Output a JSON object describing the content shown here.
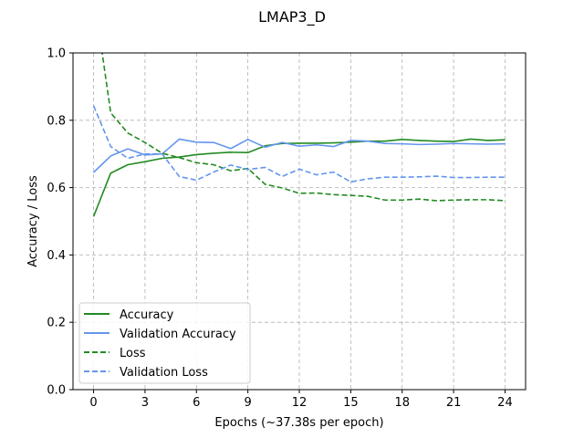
{
  "chart_data": {
    "type": "line",
    "title": "LMAP3_D",
    "xlabel": "Epochs (~37.38s per epoch)",
    "ylabel": "Accuracy / Loss",
    "xlim": [
      -1.2,
      25.2
    ],
    "ylim": [
      0.0,
      1.0
    ],
    "xticks": [
      0,
      3,
      6,
      9,
      12,
      15,
      18,
      21,
      24
    ],
    "yticks": [
      0.0,
      0.2,
      0.4,
      0.6,
      0.8,
      1.0
    ],
    "grid": true,
    "legend_position": "lower-left",
    "x": [
      0,
      1,
      2,
      3,
      4,
      5,
      6,
      7,
      8,
      9,
      10,
      11,
      12,
      13,
      14,
      15,
      16,
      17,
      18,
      19,
      20,
      21,
      22,
      23,
      24
    ],
    "series": [
      {
        "name": "Accuracy",
        "color": "#228b22",
        "style": "solid",
        "values": [
          0.514,
          0.643,
          0.668,
          0.677,
          0.687,
          0.691,
          0.698,
          0.702,
          0.705,
          0.704,
          0.724,
          0.731,
          0.732,
          0.732,
          0.733,
          0.735,
          0.738,
          0.738,
          0.743,
          0.74,
          0.738,
          0.737,
          0.744,
          0.74,
          0.742
        ]
      },
      {
        "name": "Validation Accuracy",
        "color": "#6495ed",
        "style": "solid",
        "values": [
          0.645,
          0.694,
          0.715,
          0.697,
          0.7,
          0.744,
          0.735,
          0.734,
          0.716,
          0.743,
          0.72,
          0.734,
          0.723,
          0.727,
          0.722,
          0.74,
          0.738,
          0.731,
          0.73,
          0.728,
          0.729,
          0.731,
          0.73,
          0.729,
          0.73
        ]
      },
      {
        "name": "Loss",
        "color": "#228b22",
        "style": "dashed",
        "values": [
          1.18,
          0.822,
          0.762,
          0.734,
          0.702,
          0.689,
          0.674,
          0.668,
          0.65,
          0.657,
          0.61,
          0.599,
          0.583,
          0.584,
          0.579,
          0.577,
          0.574,
          0.563,
          0.563,
          0.566,
          0.561,
          0.563,
          0.564,
          0.564,
          0.561
        ]
      },
      {
        "name": "Validation Loss",
        "color": "#6495ed",
        "style": "dashed",
        "values": [
          0.843,
          0.722,
          0.687,
          0.7,
          0.7,
          0.633,
          0.622,
          0.646,
          0.667,
          0.654,
          0.66,
          0.633,
          0.655,
          0.638,
          0.646,
          0.617,
          0.626,
          0.631,
          0.631,
          0.632,
          0.634,
          0.63,
          0.63,
          0.631,
          0.631
        ]
      }
    ]
  }
}
